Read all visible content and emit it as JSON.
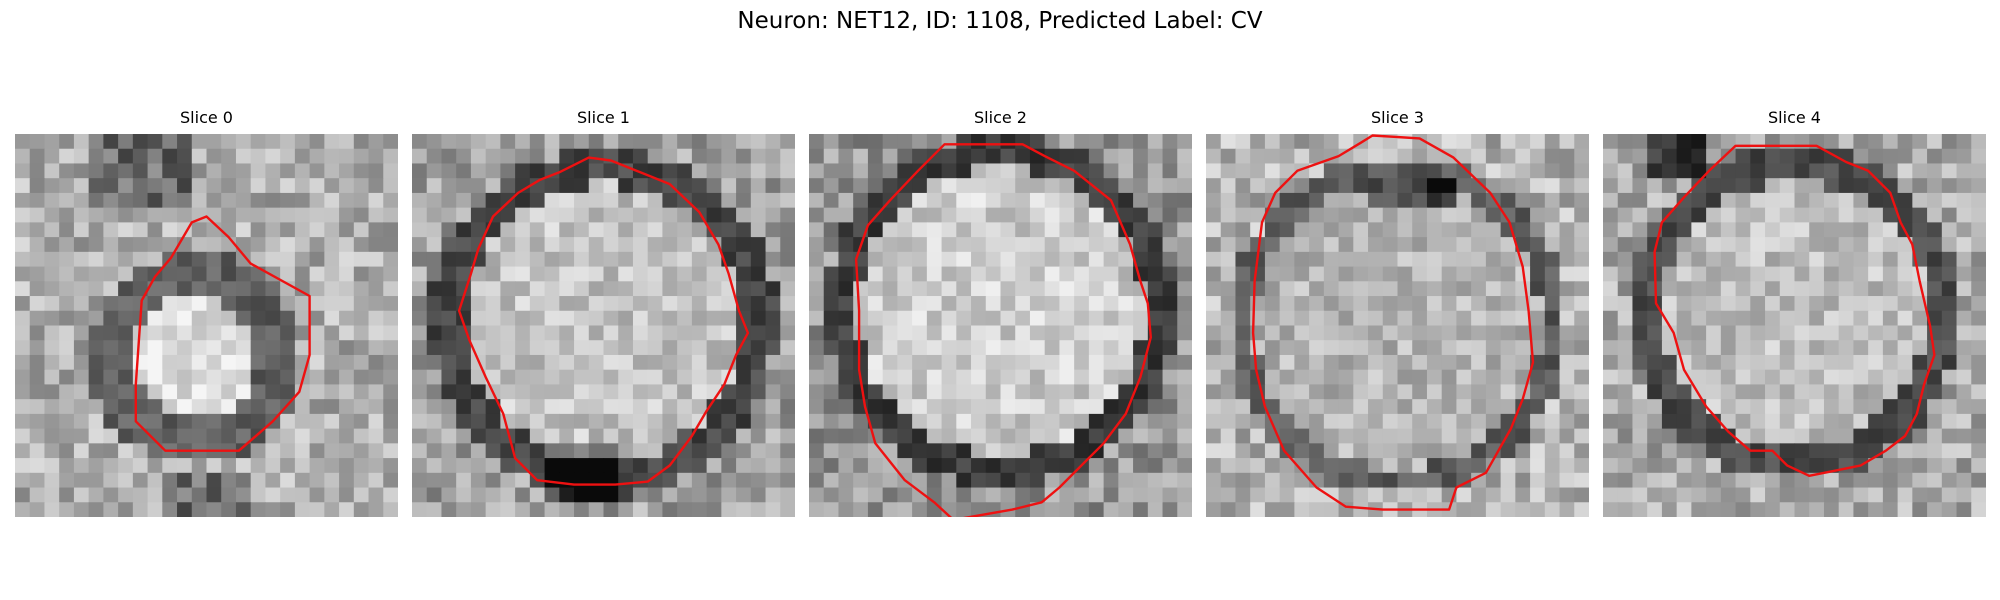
{
  "figure": {
    "title": "Neuron: NET12, ID: 1108, Predicted Label: CV"
  },
  "colors": {
    "contour": "#ee1111",
    "background": "#ffffff"
  },
  "slices": [
    {
      "title": "Slice 0",
      "image": "grayscale EM patch with small bright vesicle, red contour"
    },
    {
      "title": "Slice 1",
      "image": "grayscale EM patch with large round vesicle, red contour"
    },
    {
      "title": "Slice 2",
      "image": "grayscale EM patch with large round vesicle, red contour"
    },
    {
      "title": "Slice 3",
      "image": "grayscale EM patch with large round vesicle, red contour"
    },
    {
      "title": "Slice 4",
      "image": "grayscale EM patch with large round vesicle, red contour"
    }
  ]
}
